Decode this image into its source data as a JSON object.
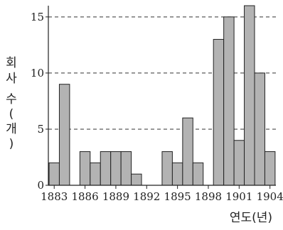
{
  "chart_data": {
    "type": "bar",
    "title": "",
    "xlabel": "연도(년)",
    "ylabel": "회사 수(개)",
    "x": [
      1883,
      1884,
      1885,
      1886,
      1887,
      1888,
      1889,
      1890,
      1891,
      1892,
      1893,
      1894,
      1895,
      1896,
      1897,
      1898,
      1899,
      1900,
      1901,
      1902,
      1903,
      1904
    ],
    "values": [
      2,
      9,
      0,
      3,
      2,
      3,
      3,
      3,
      1,
      0,
      0,
      3,
      2,
      6,
      2,
      0,
      13,
      15,
      4,
      16,
      10,
      3
    ],
    "xticks": [
      "1883",
      "1886",
      "1889",
      "1892",
      "1895",
      "1898",
      "1901",
      "1904"
    ],
    "yticks": [
      "0",
      "5",
      "10",
      "15"
    ],
    "ylim": [
      0,
      16
    ],
    "grid": "dashed horizontal at 5, 10, 15",
    "colors": {
      "bar_fill": "#b3b3b3",
      "bar_edge": "#222222",
      "axis": "#222222"
    }
  }
}
